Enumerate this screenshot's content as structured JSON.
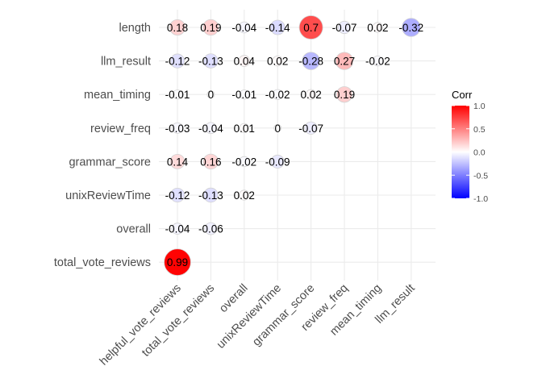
{
  "chart_data": {
    "type": "heatmap",
    "title": "",
    "xlabel": "",
    "ylabel": "",
    "x_categories": [
      "helpful_vote_reviews",
      "total_vote_reviews",
      "overall",
      "unixReviewTime",
      "grammar_score",
      "review_freq",
      "mean_timing",
      "llm_result"
    ],
    "y_categories": [
      "length",
      "llm_result",
      "mean_timing",
      "review_freq",
      "grammar_score",
      "unixReviewTime",
      "overall",
      "total_vote_reviews"
    ],
    "cells": [
      {
        "y": "length",
        "x": "helpful_vote_reviews",
        "value": 0.18,
        "label": "0.18"
      },
      {
        "y": "length",
        "x": "total_vote_reviews",
        "value": 0.19,
        "label": "0.19"
      },
      {
        "y": "length",
        "x": "overall",
        "value": -0.04,
        "label": "-0.04"
      },
      {
        "y": "length",
        "x": "unixReviewTime",
        "value": -0.14,
        "label": "-0.14"
      },
      {
        "y": "length",
        "x": "grammar_score",
        "value": 0.7,
        "label": "0.7"
      },
      {
        "y": "length",
        "x": "review_freq",
        "value": -0.07,
        "label": "-0.07"
      },
      {
        "y": "length",
        "x": "mean_timing",
        "value": 0.02,
        "label": "0.02"
      },
      {
        "y": "length",
        "x": "llm_result",
        "value": -0.32,
        "label": "-0.32"
      },
      {
        "y": "llm_result",
        "x": "helpful_vote_reviews",
        "value": -0.12,
        "label": "-0.12"
      },
      {
        "y": "llm_result",
        "x": "total_vote_reviews",
        "value": -0.13,
        "label": "-0.13"
      },
      {
        "y": "llm_result",
        "x": "overall",
        "value": 0.04,
        "label": "0.04"
      },
      {
        "y": "llm_result",
        "x": "unixReviewTime",
        "value": 0.02,
        "label": "0.02"
      },
      {
        "y": "llm_result",
        "x": "grammar_score",
        "value": -0.28,
        "label": "-0.28"
      },
      {
        "y": "llm_result",
        "x": "review_freq",
        "value": 0.27,
        "label": "0.27"
      },
      {
        "y": "llm_result",
        "x": "mean_timing",
        "value": -0.02,
        "label": "-0.02"
      },
      {
        "y": "mean_timing",
        "x": "helpful_vote_reviews",
        "value": -0.01,
        "label": "-0.01"
      },
      {
        "y": "mean_timing",
        "x": "total_vote_reviews",
        "value": 0,
        "label": "0"
      },
      {
        "y": "mean_timing",
        "x": "overall",
        "value": -0.01,
        "label": "-0.01"
      },
      {
        "y": "mean_timing",
        "x": "unixReviewTime",
        "value": -0.02,
        "label": "-0.02"
      },
      {
        "y": "mean_timing",
        "x": "grammar_score",
        "value": 0.02,
        "label": "0.02"
      },
      {
        "y": "mean_timing",
        "x": "review_freq",
        "value": 0.19,
        "label": "0.19"
      },
      {
        "y": "review_freq",
        "x": "helpful_vote_reviews",
        "value": -0.03,
        "label": "-0.03"
      },
      {
        "y": "review_freq",
        "x": "total_vote_reviews",
        "value": -0.04,
        "label": "-0.04"
      },
      {
        "y": "review_freq",
        "x": "overall",
        "value": 0.01,
        "label": "0.01"
      },
      {
        "y": "review_freq",
        "x": "unixReviewTime",
        "value": 0,
        "label": "0"
      },
      {
        "y": "review_freq",
        "x": "grammar_score",
        "value": -0.07,
        "label": "-0.07"
      },
      {
        "y": "grammar_score",
        "x": "helpful_vote_reviews",
        "value": 0.14,
        "label": "0.14"
      },
      {
        "y": "grammar_score",
        "x": "total_vote_reviews",
        "value": 0.16,
        "label": "0.16"
      },
      {
        "y": "grammar_score",
        "x": "overall",
        "value": -0.02,
        "label": "-0.02"
      },
      {
        "y": "grammar_score",
        "x": "unixReviewTime",
        "value": -0.09,
        "label": "-0.09"
      },
      {
        "y": "unixReviewTime",
        "x": "helpful_vote_reviews",
        "value": -0.12,
        "label": "-0.12"
      },
      {
        "y": "unixReviewTime",
        "x": "total_vote_reviews",
        "value": -0.13,
        "label": "-0.13"
      },
      {
        "y": "unixReviewTime",
        "x": "overall",
        "value": 0.02,
        "label": "0.02"
      },
      {
        "y": "overall",
        "x": "helpful_vote_reviews",
        "value": -0.04,
        "label": "-0.04"
      },
      {
        "y": "overall",
        "x": "total_vote_reviews",
        "value": -0.06,
        "label": "-0.06"
      },
      {
        "y": "total_vote_reviews",
        "x": "helpful_vote_reviews",
        "value": 0.99,
        "label": "0.99"
      }
    ],
    "value_range": [
      -1,
      1
    ],
    "grid": true,
    "legend": {
      "title": "Corr",
      "placement": "right",
      "ticks": [
        1.0,
        0.5,
        0.0,
        -0.5,
        -1.0
      ],
      "tick_labels": [
        "1.0",
        "0.5",
        "0.0",
        "-0.5",
        "-1.0"
      ],
      "colors": {
        "low": "#0000ff",
        "mid": "#ffffff",
        "high": "#ff0000"
      }
    }
  }
}
